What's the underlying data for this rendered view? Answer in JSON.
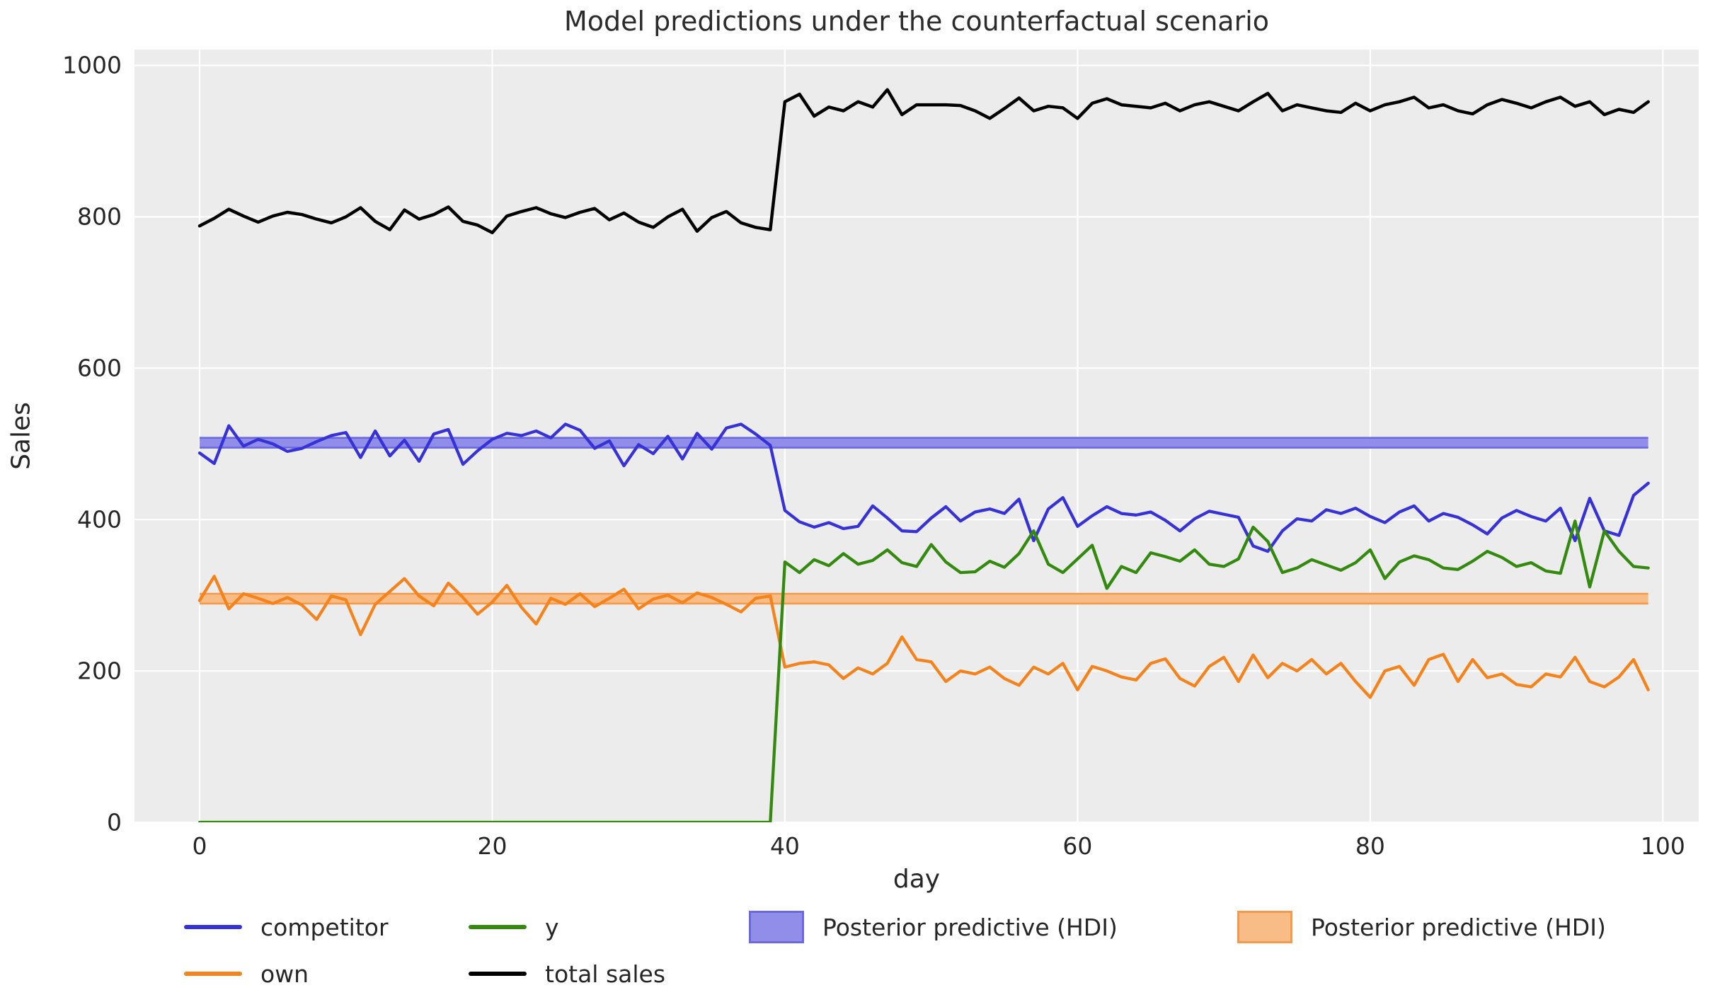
{
  "title": "Model predictions under the counterfactual scenario",
  "axes": {
    "xlabel": "day",
    "ylabel": "Sales",
    "xticks": [
      0,
      20,
      40,
      60,
      80,
      100
    ],
    "yticks": [
      0,
      200,
      400,
      600,
      800,
      1000
    ],
    "xlim": [
      -4.45,
      102.45
    ],
    "ylim": [
      0,
      1021
    ],
    "grid_color": "#ffffff",
    "plot_background": "#ececec"
  },
  "legend": {
    "row1": [
      {
        "kind": "line",
        "label": "competitor",
        "color": "#3632d8"
      },
      {
        "kind": "line",
        "label": "y",
        "color": "#338a0e"
      },
      {
        "kind": "patch",
        "label": "Posterior predictive (HDI)",
        "fill": "#908ee9",
        "edge": "#6b68e0"
      },
      {
        "kind": "patch",
        "label": "Posterior predictive (HDI)",
        "fill": "#f8bd87",
        "edge": "#f39a4c"
      }
    ],
    "row2": [
      {
        "kind": "line",
        "label": "own",
        "color": "#f5831c"
      },
      {
        "kind": "line",
        "label": "total sales",
        "color": "#000000"
      }
    ]
  },
  "chart_data": {
    "type": "line",
    "title": "Model predictions under the counterfactual scenario",
    "xlabel": "day",
    "ylabel": "Sales",
    "x_range": [
      0,
      99
    ],
    "xlim": [
      -4.45,
      102.45
    ],
    "ylim": [
      0,
      1021
    ],
    "grid": true,
    "legend_position": "below",
    "annotation": "step change at day 40: total sales jump ~800 to ~945, competitor drops ~500 to ~400, own drops ~295 to ~200, y jumps 0 to ~345",
    "bands": [
      {
        "name": "posterior-predictive-hdi-competitor",
        "x": [
          0,
          99
        ],
        "range": [
          495,
          508
        ],
        "fill": "#908ee9",
        "edge": "#6b68e0"
      },
      {
        "name": "posterior-predictive-hdi-own",
        "x": [
          0,
          99
        ],
        "range": [
          289,
          302
        ],
        "fill": "#f8bd87",
        "edge": "#f39a4c"
      }
    ],
    "series": [
      {
        "name": "competitor",
        "color": "#3632d8",
        "width": 4.3,
        "values": [
          488,
          474,
          524,
          497,
          506,
          500,
          490,
          494,
          503,
          511,
          515,
          482,
          517,
          484,
          505,
          477,
          513,
          519,
          473,
          491,
          506,
          514,
          511,
          517,
          508,
          526,
          518,
          494,
          504,
          471,
          499,
          487,
          510,
          480,
          514,
          493,
          521,
          526,
          513,
          498,
          412,
          397,
          390,
          396,
          388,
          391,
          418,
          402,
          385,
          384,
          402,
          417,
          398,
          410,
          414,
          408,
          427,
          372,
          414,
          429,
          391,
          405,
          417,
          408,
          406,
          410,
          399,
          385,
          401,
          411,
          407,
          403,
          365,
          358,
          385,
          401,
          398,
          413,
          408,
          415,
          404,
          396,
          410,
          418,
          398,
          408,
          403,
          393,
          381,
          402,
          412,
          404,
          398,
          415,
          372,
          428,
          385,
          379,
          432,
          448
        ]
      },
      {
        "name": "own",
        "color": "#f5831c",
        "width": 4.3,
        "values": [
          293,
          325,
          282,
          302,
          296,
          289,
          297,
          287,
          268,
          299,
          294,
          248,
          288,
          305,
          322,
          299,
          286,
          316,
          297,
          275,
          291,
          313,
          284,
          262,
          296,
          288,
          302,
          285,
          296,
          308,
          282,
          295,
          300,
          290,
          303,
          297,
          288,
          278,
          296,
          299,
          205,
          210,
          212,
          208,
          190,
          204,
          196,
          210,
          245,
          215,
          212,
          186,
          200,
          196,
          205,
          190,
          181,
          205,
          196,
          210,
          175,
          206,
          200,
          192,
          188,
          210,
          216,
          190,
          180,
          206,
          218,
          186,
          221,
          191,
          210,
          200,
          215,
          196,
          210,
          186,
          165,
          200,
          206,
          181,
          215,
          222,
          186,
          215,
          191,
          196,
          182,
          179,
          196,
          192,
          218,
          186,
          179,
          192,
          215,
          175
        ]
      },
      {
        "name": "y",
        "color": "#338a0e",
        "width": 4.3,
        "values": [
          0,
          0,
          0,
          0,
          0,
          0,
          0,
          0,
          0,
          0,
          0,
          0,
          0,
          0,
          0,
          0,
          0,
          0,
          0,
          0,
          0,
          0,
          0,
          0,
          0,
          0,
          0,
          0,
          0,
          0,
          0,
          0,
          0,
          0,
          0,
          0,
          0,
          0,
          0,
          0,
          344,
          330,
          347,
          339,
          355,
          341,
          346,
          360,
          343,
          338,
          367,
          344,
          330,
          331,
          345,
          337,
          355,
          385,
          341,
          330,
          348,
          366,
          309,
          338,
          330,
          356,
          351,
          345,
          360,
          341,
          338,
          348,
          390,
          371,
          330,
          336,
          347,
          340,
          333,
          343,
          360,
          322,
          344,
          352,
          347,
          336,
          334,
          345,
          358,
          350,
          338,
          343,
          332,
          329,
          398,
          311,
          385,
          358,
          338,
          336
        ]
      },
      {
        "name": "total sales",
        "color": "#000000",
        "width": 4.5,
        "values": [
          788,
          798,
          810,
          801,
          793,
          801,
          806,
          803,
          797,
          792,
          800,
          812,
          794,
          783,
          809,
          797,
          803,
          813,
          794,
          789,
          779,
          801,
          807,
          812,
          804,
          799,
          806,
          811,
          796,
          805,
          793,
          786,
          800,
          810,
          781,
          799,
          807,
          792,
          786,
          783,
          952,
          962,
          933,
          945,
          940,
          952,
          945,
          968,
          935,
          948,
          948,
          948,
          947,
          940,
          930,
          943,
          957,
          940,
          946,
          944,
          930,
          950,
          956,
          948,
          946,
          944,
          950,
          940,
          948,
          952,
          946,
          940,
          952,
          963,
          940,
          948,
          944,
          940,
          938,
          950,
          940,
          948,
          952,
          958,
          944,
          948,
          940,
          936,
          948,
          955,
          950,
          944,
          952,
          958,
          946,
          952,
          935,
          942,
          938,
          952
        ]
      }
    ]
  }
}
